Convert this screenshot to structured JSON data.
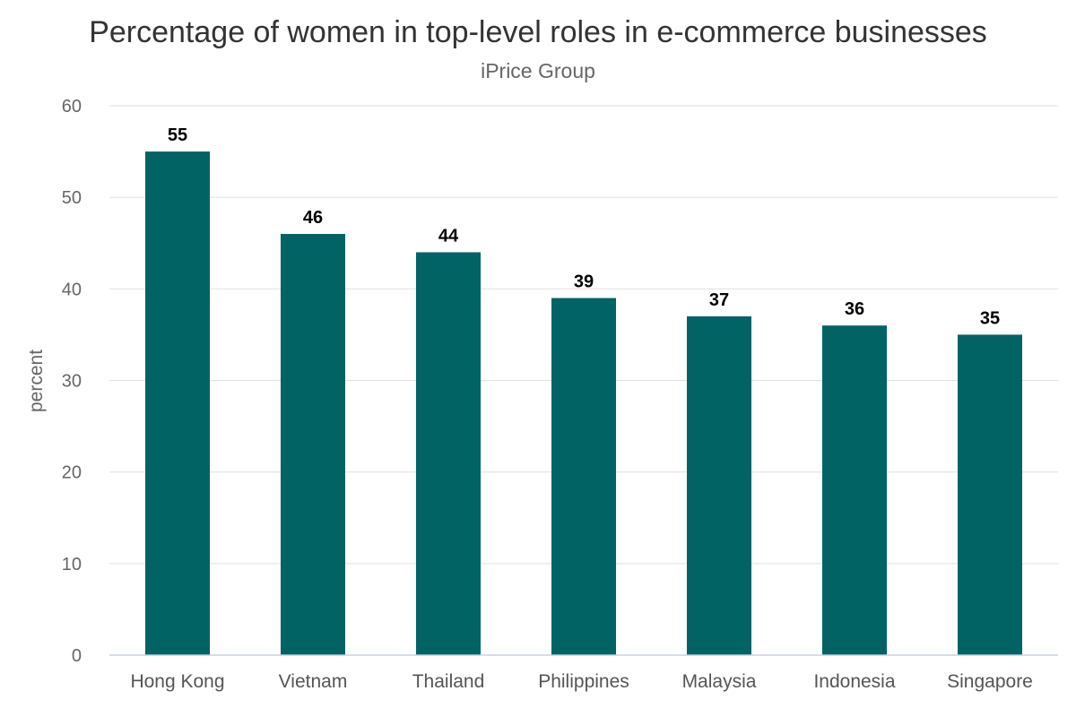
{
  "chart_data": {
    "type": "bar",
    "title": "Percentage of women in top-level roles in e-commerce businesses",
    "subtitle": "iPrice Group",
    "xlabel": "",
    "ylabel": "percent",
    "categories": [
      "Hong Kong",
      "Vietnam",
      "Thailand",
      "Philippines",
      "Malaysia",
      "Indonesia",
      "Singapore"
    ],
    "values": [
      55,
      46,
      44,
      39,
      37,
      36,
      35
    ],
    "data_labels": [
      "55",
      "46",
      "44",
      "39",
      "37",
      "36",
      "35"
    ],
    "ylim": [
      0,
      60
    ],
    "yticks": [
      0,
      10,
      20,
      30,
      40,
      50,
      60
    ],
    "ytick_labels": [
      "0",
      "10",
      "20",
      "30",
      "40",
      "50",
      "60"
    ],
    "bar_color": "#016363",
    "grid": true,
    "legend": "none"
  }
}
